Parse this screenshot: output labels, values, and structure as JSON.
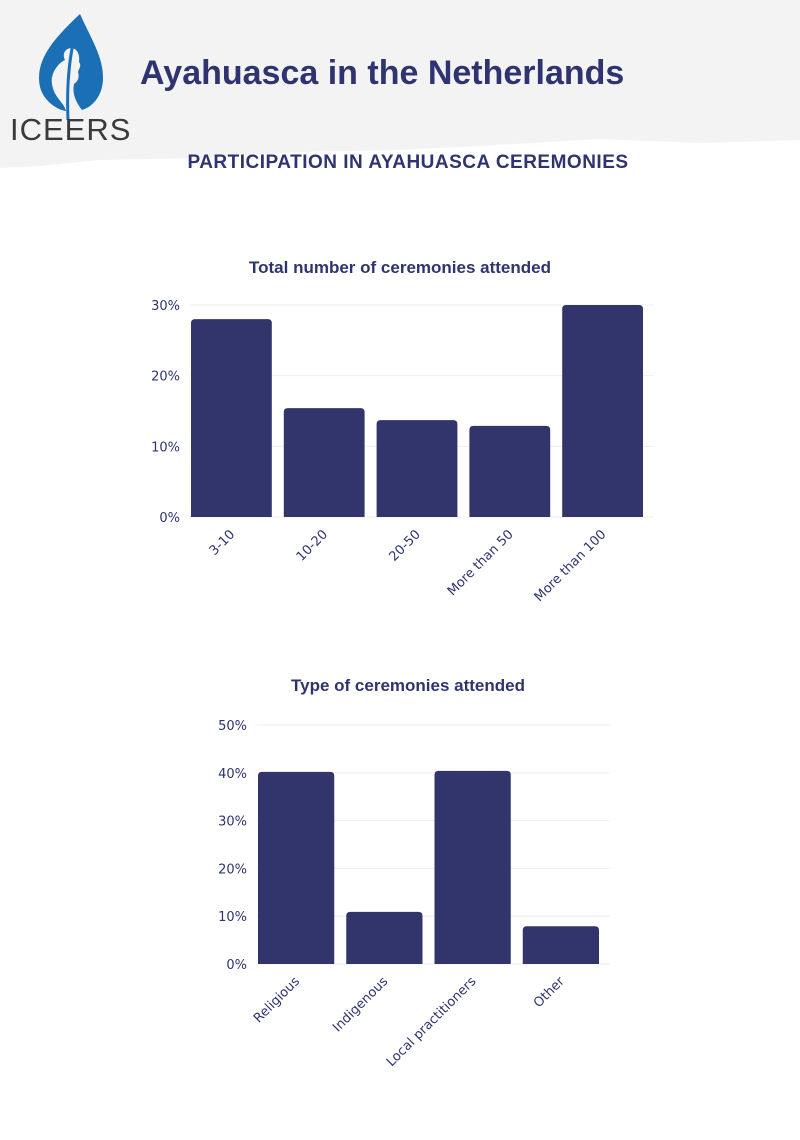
{
  "header": {
    "logo_text": "ICEERS",
    "title": "Ayahuasca in the Netherlands",
    "subtitle": "PARTICIPATION IN AYAHUASCA CEREMONIES"
  },
  "colors": {
    "bar": "#31356b",
    "text": "#2f3470",
    "grid": "#eeeeee",
    "logo": "#1a6fb5"
  },
  "chart_data": [
    {
      "type": "bar",
      "title": "Total number of ceremonies attended",
      "categories": [
        "3-10",
        "10-20",
        "20-50",
        "More than 50",
        "More than 100"
      ],
      "values": [
        28,
        15.4,
        13.7,
        12.9,
        30
      ],
      "yticks": [
        "0%",
        "10%",
        "20%",
        "30%"
      ],
      "ytick_values": [
        0,
        10,
        20,
        30
      ],
      "ylim": [
        0,
        30
      ],
      "xlabel": "",
      "ylabel": "",
      "grid": true
    },
    {
      "type": "bar",
      "title": "Type of ceremonies attended",
      "categories": [
        "Religious",
        "Indigenous",
        "Local practitioners",
        "Other"
      ],
      "values": [
        40.2,
        10.9,
        40.4,
        7.9
      ],
      "yticks": [
        "0%",
        "10%",
        "20%",
        "30%",
        "40%",
        "50%"
      ],
      "ytick_values": [
        0,
        10,
        20,
        30,
        40,
        50
      ],
      "ylim": [
        0,
        50
      ],
      "xlabel": "",
      "ylabel": "",
      "grid": true
    }
  ]
}
